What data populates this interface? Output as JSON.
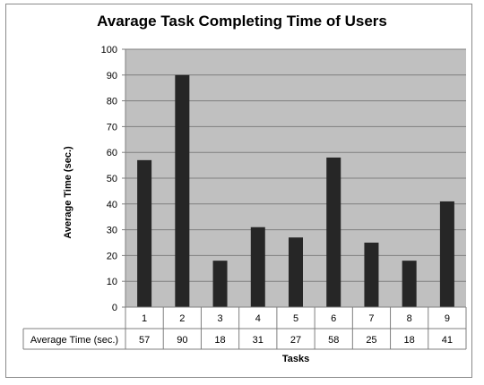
{
  "chart_data": {
    "type": "bar",
    "title": "Avarage Task Completing Time of Users",
    "xlabel": "Tasks",
    "ylabel": "Average Time (sec.)",
    "categories": [
      "1",
      "2",
      "3",
      "4",
      "5",
      "6",
      "7",
      "8",
      "9"
    ],
    "series": [
      {
        "name": "Average Time (sec.)",
        "values": [
          57,
          90,
          18,
          31,
          27,
          58,
          25,
          18,
          41
        ]
      }
    ],
    "ylim": [
      0,
      100
    ],
    "yticks": [
      0,
      10,
      20,
      30,
      40,
      50,
      60,
      70,
      80,
      90,
      100
    ],
    "grid": true,
    "legend": "data-table",
    "colors": {
      "bar": "#262626",
      "plot_background": "#c0c0c0",
      "gridline": "#7f7f7f"
    }
  }
}
